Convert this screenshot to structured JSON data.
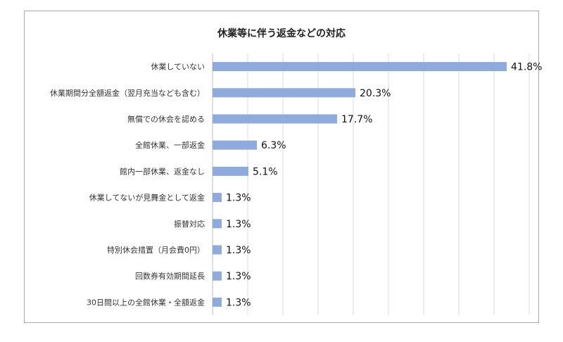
{
  "chart_data": {
    "type": "bar",
    "orientation": "horizontal",
    "title": "休業等に伴う返金などの対応",
    "categories": [
      "休業していない",
      "休業期間分全額返金（翌月充当なども含む）",
      "無償での休会を認める",
      "全館休業、一部返金",
      "館内一部休業、返金なし",
      "休業してないが見舞金として返金",
      "振替対応",
      "特別休会措置（月会費0円）",
      "回数券有効期間延長",
      "30日間以上の全館休業・全額返金"
    ],
    "values": [
      41.8,
      20.3,
      17.7,
      6.3,
      5.1,
      1.3,
      1.3,
      1.3,
      1.3,
      1.3
    ],
    "labels": [
      "41.8%",
      "20.3%",
      "17.7%",
      "6.3%",
      "5.1%",
      "1.3%",
      "1.3%",
      "1.3%",
      "1.3%",
      "1.3%"
    ],
    "xlim": [
      0,
      45
    ],
    "grid": true,
    "bar_color": "#8faadc"
  }
}
